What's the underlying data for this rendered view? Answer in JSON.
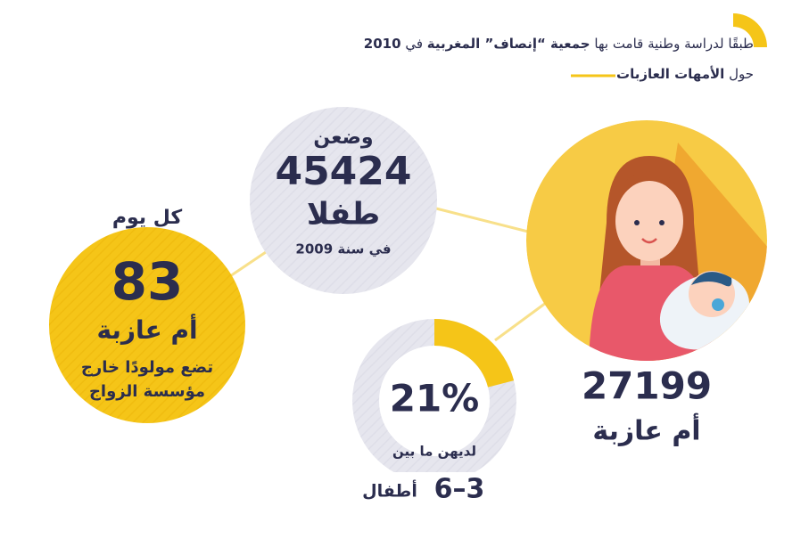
{
  "header": {
    "line1": [
      "طبقًا لدراسة وطنية قامت بها",
      "جمعية “إنصاف” المغربية",
      "في",
      "2010"
    ],
    "line2": [
      "حول",
      "الأمهات العازبات"
    ]
  },
  "births": {
    "verb": "وضعن",
    "number": "45424",
    "unit": "طفلا",
    "year": "في سنة 2009"
  },
  "daily": {
    "heading": "كل يوم",
    "number": "83",
    "unit": "أم عازبة",
    "line1": "تضع مولودًا خارج",
    "line2": "مؤسسة الزواج"
  },
  "mothers": {
    "number": "27199",
    "unit": "أم عازبة"
  },
  "children": {
    "donut": {
      "value": 21,
      "label": "21%"
    },
    "line1": "لديهن ما بين",
    "range": "6–3",
    "unit": "أطفال"
  }
}
